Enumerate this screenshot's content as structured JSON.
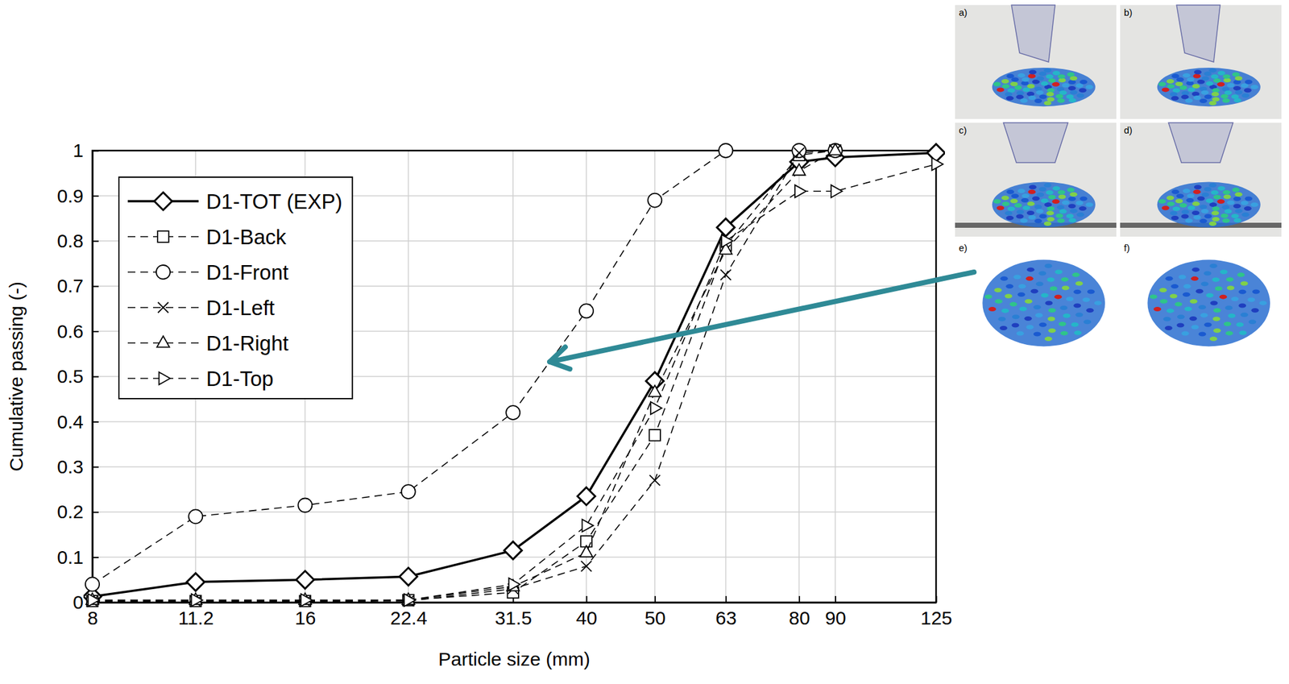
{
  "chart_data": {
    "type": "line",
    "xlabel": "Particle size (mm)",
    "ylabel": "Cumulative passing (-)",
    "log": "x",
    "xlim": [
      8,
      125
    ],
    "ylim": [
      0,
      1
    ],
    "xticks": [
      8,
      11.2,
      16,
      22.4,
      31.5,
      40,
      50,
      63,
      80,
      90,
      125
    ],
    "yticks": [
      0,
      0.1,
      0.2,
      0.3,
      0.4,
      0.5,
      0.6,
      0.7,
      0.8,
      0.9,
      1
    ],
    "grid": true,
    "legend": "upper left",
    "annotations": [
      "a)",
      "b)",
      "c)",
      "d)",
      "e)",
      "f)"
    ],
    "series": [
      {
        "name": "D1-TOT (EXP)",
        "color": "#000000",
        "marker": "diamond",
        "line_style": "solid",
        "x": [
          8,
          11.2,
          16,
          22.4,
          31.5,
          40,
          50,
          63,
          80,
          90,
          125
        ],
        "values": [
          0.013,
          0.045,
          0.05,
          0.057,
          0.115,
          0.235,
          0.49,
          0.83,
          0.975,
          0.985,
          0.995
        ]
      },
      {
        "name": "D1-Back",
        "color": "#000000",
        "marker": "square",
        "line_style": "dashed",
        "x": [
          8,
          11.2,
          16,
          22.4,
          31.5,
          40,
          50,
          63,
          80,
          90
        ],
        "values": [
          0.003,
          0.003,
          0.003,
          0.005,
          0.022,
          0.135,
          0.37,
          0.79,
          0.99,
          1.0
        ]
      },
      {
        "name": "D1-Front",
        "color": "#000000",
        "marker": "circle",
        "line_style": "dashed",
        "x": [
          8,
          11.2,
          16,
          22.4,
          31.5,
          40,
          50,
          63,
          80,
          90
        ],
        "values": [
          0.04,
          0.19,
          0.215,
          0.245,
          0.42,
          0.645,
          0.89,
          1.0,
          1.0,
          1.0
        ]
      },
      {
        "name": "D1-Left",
        "color": "#000000",
        "marker": "x",
        "line_style": "dashed",
        "x": [
          8,
          11.2,
          16,
          22.4,
          31.5,
          40,
          50,
          63,
          80,
          90
        ],
        "values": [
          0.002,
          0.002,
          0.002,
          0.003,
          0.03,
          0.08,
          0.27,
          0.725,
          0.995,
          1.0
        ]
      },
      {
        "name": "D1-Right",
        "color": "#000000",
        "marker": "triangle-up",
        "line_style": "dashed",
        "x": [
          8,
          11.2,
          16,
          22.4,
          31.5,
          40,
          50,
          63,
          80,
          90
        ],
        "values": [
          0.005,
          0.005,
          0.005,
          0.005,
          0.035,
          0.11,
          0.465,
          0.78,
          0.955,
          1.0
        ]
      },
      {
        "name": "D1-Top",
        "color": "#000000",
        "marker": "triangle-right",
        "line_style": "dashed",
        "x": [
          8,
          11.2,
          16,
          22.4,
          31.5,
          40,
          50,
          63,
          80,
          90,
          125
        ],
        "values": [
          0.005,
          0.005,
          0.005,
          0.005,
          0.04,
          0.17,
          0.43,
          0.8,
          0.91,
          0.91,
          0.97
        ]
      }
    ]
  }
}
